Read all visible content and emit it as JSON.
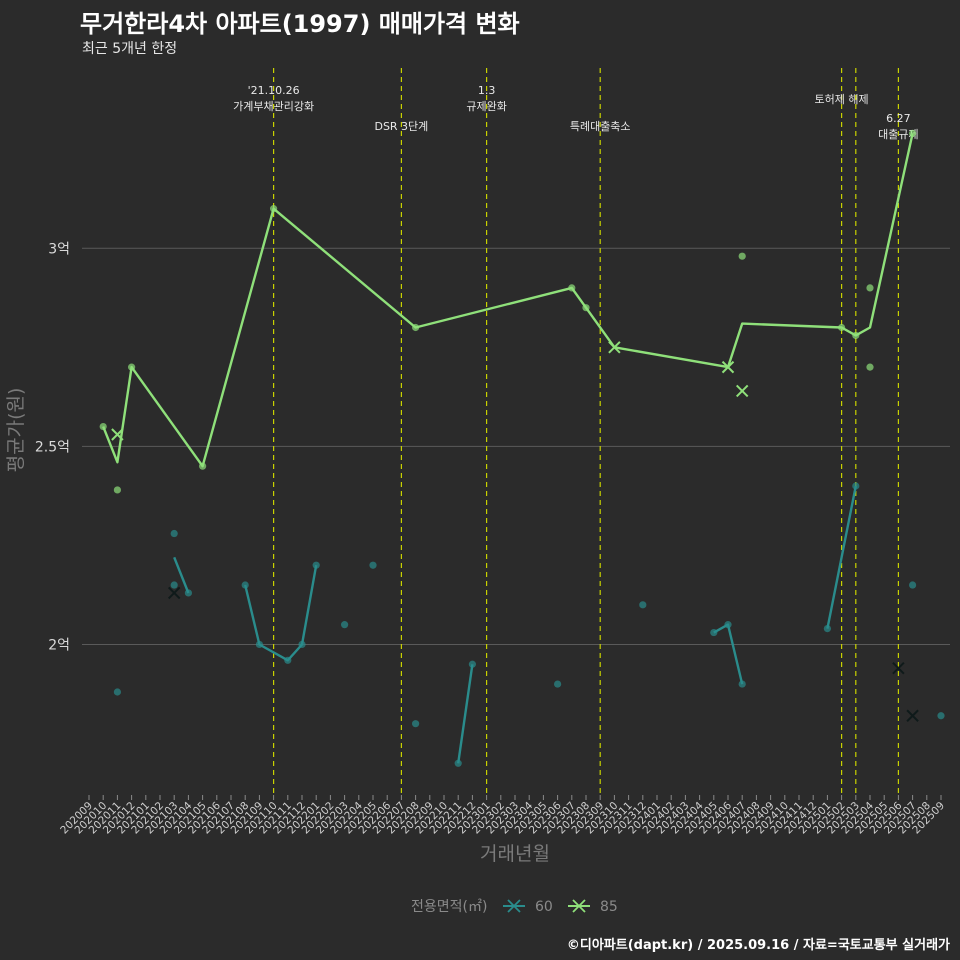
{
  "title": "무거한라4차 아파트(1997) 매매가격 변화",
  "subtitle": "최근 5개년 한정",
  "footer": "©디아파트(dapt.kr) / 2025.09.16 / 자료=국토교통부 실거래가",
  "colors": {
    "s60": "#2a8c8c",
    "s85": "#8fe07a",
    "event": "#c8d200",
    "grid": "#5a5a5a",
    "background": "#2b2b2b"
  },
  "chart_data": {
    "type": "line",
    "title": "무거한라4차 아파트(1997) 매매가격 변화",
    "subtitle": "최근 5개년 한정",
    "xlabel": "거래년월",
    "ylabel": "평균가(원)",
    "ylim": [
      1.62,
      3.45
    ],
    "y_unit": "억",
    "y_ticks": [
      {
        "value": 2.0,
        "label": "2억"
      },
      {
        "value": 2.5,
        "label": "2.5억"
      },
      {
        "value": 3.0,
        "label": "3억"
      }
    ],
    "grid": true,
    "legend": {
      "title": "전용면적(㎡)",
      "position": "bottom"
    },
    "categories": [
      "202009",
      "202010",
      "202011",
      "202012",
      "202101",
      "202102",
      "202103",
      "202104",
      "202105",
      "202106",
      "202107",
      "202108",
      "202109",
      "202110",
      "202111",
      "202112",
      "202201",
      "202202",
      "202203",
      "202204",
      "202205",
      "202206",
      "202207",
      "202208",
      "202209",
      "202210",
      "202211",
      "202212",
      "202301",
      "202302",
      "202303",
      "202304",
      "202305",
      "202306",
      "202307",
      "202308",
      "202309",
      "202310",
      "202311",
      "202312",
      "202401",
      "202402",
      "202403",
      "202404",
      "202405",
      "202406",
      "202407",
      "202408",
      "202409",
      "202410",
      "202411",
      "202412",
      "202501",
      "202502",
      "202503",
      "202504",
      "202505",
      "202506",
      "202507",
      "202508",
      "202509"
    ],
    "events": [
      {
        "x": "202110",
        "lines": [
          "'21.10.26",
          "가계부채관리강화"
        ],
        "level": 0
      },
      {
        "x": "202207",
        "lines": [
          "DSR 3단계"
        ],
        "level": 2
      },
      {
        "x": "202301",
        "lines": [
          "1.3",
          "규제완화"
        ],
        "level": 0
      },
      {
        "x": "202309",
        "lines": [
          "특례대출축소"
        ],
        "level": 2
      },
      {
        "x": "202502",
        "lines": [
          "토허제 해제"
        ],
        "level": 1
      },
      {
        "x": "202503",
        "lines": [],
        "level": 1
      },
      {
        "x": "202506",
        "lines": [
          "6.27",
          "대출규제"
        ],
        "level": 3
      }
    ],
    "series": [
      {
        "name": "60",
        "lines": [
          [
            [
              "202103",
              2.22
            ],
            [
              "202104",
              2.13
            ]
          ],
          [
            [
              "202108",
              2.15
            ],
            [
              "202109",
              2.0
            ],
            [
              "202111",
              1.96
            ],
            [
              "202112",
              2.0
            ],
            [
              "202201",
              2.2
            ]
          ],
          [
            [
              "202211",
              1.7
            ],
            [
              "202212",
              1.95
            ]
          ],
          [
            [
              "202405",
              2.03
            ],
            [
              "202406",
              2.05
            ],
            [
              "202407",
              1.9
            ]
          ],
          [
            [
              "202501",
              2.04
            ],
            [
              "202503",
              2.4
            ]
          ]
        ],
        "points": [
          [
            "202011",
            1.88
          ],
          [
            "202103",
            2.28
          ],
          [
            "202103",
            2.15
          ],
          [
            "202104",
            2.13
          ],
          [
            "202108",
            2.15
          ],
          [
            "202109",
            2.0
          ],
          [
            "202111",
            1.96
          ],
          [
            "202112",
            2.0
          ],
          [
            "202201",
            2.2
          ],
          [
            "202203",
            2.05
          ],
          [
            "202205",
            2.2
          ],
          [
            "202208",
            1.8
          ],
          [
            "202211",
            1.7
          ],
          [
            "202212",
            1.95
          ],
          [
            "202306",
            1.9
          ],
          [
            "202312",
            2.1
          ],
          [
            "202405",
            2.03
          ],
          [
            "202406",
            2.05
          ],
          [
            "202407",
            1.9
          ],
          [
            "202501",
            2.04
          ],
          [
            "202503",
            2.4
          ],
          [
            "202507",
            2.15
          ],
          [
            "202509",
            1.82
          ]
        ],
        "cancelled": [
          [
            "202103",
            2.13
          ],
          [
            "202506",
            1.94
          ],
          [
            "202507",
            1.82
          ]
        ]
      },
      {
        "name": "85",
        "lines": [
          [
            [
              "202010",
              2.55
            ],
            [
              "202011",
              2.46
            ],
            [
              "202012",
              2.7
            ],
            [
              "202105",
              2.45
            ],
            [
              "202110",
              3.1
            ],
            [
              "202208",
              2.8
            ],
            [
              "202307",
              2.9
            ],
            [
              "202308",
              2.85
            ],
            [
              "202310",
              2.75
            ],
            [
              "202406",
              2.7
            ],
            [
              "202407",
              2.81
            ],
            [
              "202502",
              2.8
            ],
            [
              "202503",
              2.78
            ],
            [
              "202504",
              2.8
            ],
            [
              "202507",
              3.29
            ]
          ]
        ],
        "points": [
          [
            "202010",
            2.55
          ],
          [
            "202011",
            2.39
          ],
          [
            "202012",
            2.7
          ],
          [
            "202105",
            2.45
          ],
          [
            "202110",
            3.1
          ],
          [
            "202208",
            2.8
          ],
          [
            "202307",
            2.9
          ],
          [
            "202308",
            2.85
          ],
          [
            "202407",
            2.98
          ],
          [
            "202502",
            2.8
          ],
          [
            "202503",
            2.78
          ],
          [
            "202504",
            2.9
          ],
          [
            "202504",
            2.7
          ],
          [
            "202507",
            3.29
          ]
        ],
        "cancelled": [
          [
            "202011",
            2.53
          ],
          [
            "202310",
            2.75
          ],
          [
            "202406",
            2.7
          ],
          [
            "202407",
            2.64
          ]
        ]
      }
    ]
  }
}
